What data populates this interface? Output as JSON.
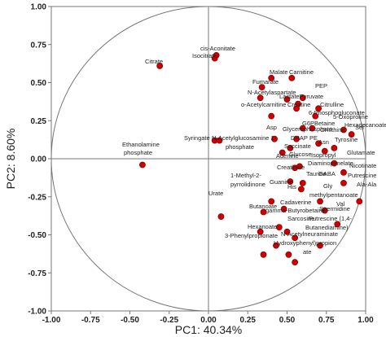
{
  "chart_data": {
    "type": "scatter",
    "title": "",
    "xlabel": "PC1: 40.34%",
    "ylabel": "PC2: 8.60%",
    "xlim": [
      -1.0,
      1.0
    ],
    "ylim": [
      -1.0,
      1.0
    ],
    "x_ticks": [
      "-1.00",
      "-0.75",
      "-0.50",
      "-0.25",
      "0.00",
      "0.25",
      "0.50",
      "0.75",
      "1.00"
    ],
    "y_ticks": [
      "1.00",
      "0.75",
      "0.50",
      "0.25",
      "0.00",
      "-0.25",
      "-0.50",
      "-0.75",
      "-1.00"
    ],
    "unit_circle": true,
    "grid": false,
    "point_color": "#cc0000",
    "points": [
      {
        "label": "cis-Aconitate",
        "x": 0.05,
        "y": 0.68
      },
      {
        "label": "Isocitrate",
        "x": 0.04,
        "y": 0.66
      },
      {
        "label": "Citrate",
        "x": -0.31,
        "y": 0.61
      },
      {
        "label": "Malate",
        "x": 0.4,
        "y": 0.53
      },
      {
        "label": "Carnitine",
        "x": 0.53,
        "y": 0.53
      },
      {
        "label": "Fumarate",
        "x": 0.34,
        "y": 0.47
      },
      {
        "label": "PEP",
        "x": 0.6,
        "y": 0.4
      },
      {
        "label": "N-Acetylaspartate",
        "x": 0.33,
        "y": 0.4
      },
      {
        "label": "Lactate",
        "x": 0.5,
        "y": 0.39
      },
      {
        "label": "Pyruvate",
        "x": 0.57,
        "y": 0.36
      },
      {
        "label": "Creatine",
        "x": 0.56,
        "y": 0.33
      },
      {
        "label": "Citrulline",
        "x": 0.7,
        "y": 0.33
      },
      {
        "label": "o-Acetylcarnitine",
        "x": 0.4,
        "y": 0.28
      },
      {
        "label": "6-Phosphogluconate",
        "x": 0.68,
        "y": 0.28
      },
      {
        "label": "G6P",
        "x": 0.6,
        "y": 0.2
      },
      {
        "label": "Betaine",
        "x": 0.66,
        "y": 0.2
      },
      {
        "label": "5-Oxoproline",
        "x": 0.86,
        "y": 0.19
      },
      {
        "label": "Hexadecanoate",
        "x": 0.91,
        "y": 0.16
      },
      {
        "label": "Asp",
        "x": 0.42,
        "y": 0.13
      },
      {
        "label": "Glycerophosphate",
        "x": 0.56,
        "y": 0.13
      },
      {
        "label": "DHAP",
        "x": 0.52,
        "y": 0.07
      },
      {
        "label": "Ornithine",
        "x": 0.7,
        "y": 0.1
      },
      {
        "label": "Syringate",
        "x": 0.04,
        "y": 0.12
      },
      {
        "label": "N-Acetylglucosamine 1-phosphate",
        "x": 0.07,
        "y": 0.12
      },
      {
        "label": "Succinate",
        "x": 0.47,
        "y": 0.04
      },
      {
        "label": "Asn",
        "x": 0.74,
        "y": 0.05
      },
      {
        "label": "Tyr",
        "x": 0.8,
        "y": 0.07
      },
      {
        "label": "Adenine",
        "x": 0.55,
        "y": -0.06
      },
      {
        "label": "Glucose",
        "x": 0.58,
        "y": -0.05
      },
      {
        "label": "Glutamate",
        "x": 0.8,
        "y": -0.03
      },
      {
        "label": "Ethanolamine phosphate",
        "x": -0.42,
        "y": -0.04
      },
      {
        "label": "Creatinine",
        "x": 0.52,
        "y": -0.15
      },
      {
        "label": "Diaminopimelate",
        "x": 0.6,
        "y": -0.16
      },
      {
        "label": "Nicotinate",
        "x": 0.86,
        "y": -0.09
      },
      {
        "label": "Putrescine",
        "x": 0.86,
        "y": -0.16
      },
      {
        "label": "Guanine",
        "x": 0.4,
        "y": -0.28
      },
      {
        "label": "Taurine",
        "x": 0.59,
        "y": -0.2
      },
      {
        "label": "1-Methyl-2-pyrrolidinone",
        "x": 0.35,
        "y": -0.35
      },
      {
        "label": "His",
        "x": 0.48,
        "y": -0.33
      },
      {
        "label": "Urate",
        "x": 0.08,
        "y": -0.38
      },
      {
        "label": "Ala-Ala",
        "x": 0.96,
        "y": -0.28
      },
      {
        "label": "Glycine",
        "x": 0.71,
        "y": -0.28
      },
      {
        "label": "3-Methylpentanoate",
        "x": 0.74,
        "y": -0.34
      },
      {
        "label": "Val",
        "x": 0.82,
        "y": -0.43
      },
      {
        "label": "Cadaverine",
        "x": 0.45,
        "y": -0.45
      },
      {
        "label": "Butanoate",
        "x": 0.33,
        "y": -0.48
      },
      {
        "label": "gamma-Butyrobetaine",
        "x": 0.5,
        "y": -0.48
      },
      {
        "label": "Sarcosine",
        "x": 0.55,
        "y": -0.52
      },
      {
        "label": "Putrescine (1,4-Butanediamine)",
        "x": 0.71,
        "y": -0.57
      },
      {
        "label": "Hexanoate",
        "x": 0.43,
        "y": -0.57
      },
      {
        "label": "3-Phenylpropionate",
        "x": 0.35,
        "y": -0.63
      },
      {
        "label": "N-Acetylneuraminate",
        "x": 0.51,
        "y": -0.63
      },
      {
        "label": "Fumarate (3-hydroxyphenyl)propionate",
        "x": 0.55,
        "y": -0.68
      }
    ],
    "labels": {
      "cis_aconitate": "cis-Aconitate",
      "isocitrate": "Isocitrate",
      "citrate": "Citrate",
      "malate": "Malate",
      "carnitine": "Carnitine",
      "fumarate": "Fumarate",
      "pep": "PEP",
      "n_acetylaspartate": "N-Acetylaspartate",
      "lactate_pyruvate": "LactatePyruvate",
      "creatine": "Creatine",
      "citrulline": "Citrulline",
      "o_acetylcarnitine": "o-Acetylcarnitine",
      "six_phospho": "6-Phosphogluconate",
      "g6p_betaine": "G6PBetaine",
      "five_oxo": "5-Oxoproline",
      "hexadecanoate": "Hexadecanoate",
      "asp": "Asp",
      "glycerophosphate": "Glycerophosphate",
      "dhap": "DHAP",
      "pe": "PE",
      "ornithine": "Ornithine",
      "syringate": "Syringate",
      "n_acetylglucosamine": "N-Acetylglucosamine 1-",
      "n_acetylglucosamine_2": "phosphate",
      "succinate": "Succinate",
      "asn": "Asn",
      "tyrosine": "Tyrosine",
      "ser": "Ser",
      "adenine": "Adenine",
      "glucose": "Glucose",
      "isoprop": "Isopropyl",
      "glutamate": "Glutamate",
      "ethanolamine_1": "Ethanolamine",
      "ethanolamine_2": "phosphate",
      "creatinine": "Creatinine",
      "diaminopimelate": "Diaminopimelate",
      "nicotinate": "Nicotinate",
      "putrescine": "Putrescine",
      "guanine": "Guanine",
      "taurine": "Taurine",
      "gaba": "GABA",
      "methyl_1": "1-Methyl-2-",
      "methyl_2": "pyrrolidinone",
      "his": "His",
      "urate": "Urate",
      "ala_ala": "Ala-Ala",
      "gly": "Gly",
      "methylpentanoate": "methylpentanoate",
      "val": "Val",
      "cadaverine": "Cadaverine",
      "butanoate": "Butanoate",
      "gamma_butyro": "gamma-Butyrobetaine",
      "spermidine": "Spermidine",
      "sarcosine": "Sarcosine",
      "putrescine_14": "Putrescine (1,4-",
      "butanediamine": "Butanediamine)",
      "hexanoate": "Hexanoate",
      "phenylprop": "3-Phenylpropionate",
      "n_acetylneur": "N-Acetylneuraminate",
      "hydroxyphenyl": "Hydroxyphenyl)propion",
      "ate": "ate"
    }
  }
}
